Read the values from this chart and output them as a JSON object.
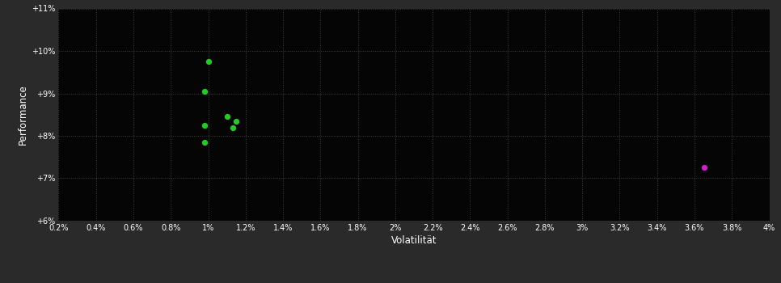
{
  "background_color": "#2a2a2a",
  "plot_bg_color": "#050505",
  "grid_color": "#404040",
  "text_color": "#ffffff",
  "xlabel": "Volatilität",
  "ylabel": "Performance",
  "xlim": [
    0.002,
    0.04
  ],
  "ylim": [
    0.06,
    0.11
  ],
  "xticks": [
    0.002,
    0.004,
    0.006,
    0.008,
    0.01,
    0.012,
    0.014,
    0.016,
    0.018,
    0.02,
    0.022,
    0.024,
    0.026,
    0.028,
    0.03,
    0.032,
    0.034,
    0.036,
    0.038,
    0.04
  ],
  "xticklabels": [
    "0.2%",
    "0.4%",
    "0.6%",
    "0.8%",
    "1%",
    "1.2%",
    "1.4%",
    "1.6%",
    "1.8%",
    "2%",
    "2.2%",
    "2.4%",
    "2.6%",
    "2.8%",
    "3%",
    "3.2%",
    "3.4%",
    "3.6%",
    "3.8%",
    "4%"
  ],
  "yticks": [
    0.06,
    0.07,
    0.08,
    0.09,
    0.1,
    0.11
  ],
  "yticklabels": [
    "+6%",
    "+7%",
    "+8%",
    "+9%",
    "+10%",
    "+11%"
  ],
  "green_points": [
    [
      0.01,
      0.0975
    ],
    [
      0.0098,
      0.0905
    ],
    [
      0.011,
      0.0845
    ],
    [
      0.0115,
      0.0835
    ],
    [
      0.0098,
      0.0825
    ],
    [
      0.0113,
      0.082
    ],
    [
      0.0098,
      0.0785
    ]
  ],
  "green_color": "#22cc22",
  "magenta_points": [
    [
      0.0365,
      0.0725
    ]
  ],
  "magenta_color": "#cc22cc",
  "point_size": 18
}
